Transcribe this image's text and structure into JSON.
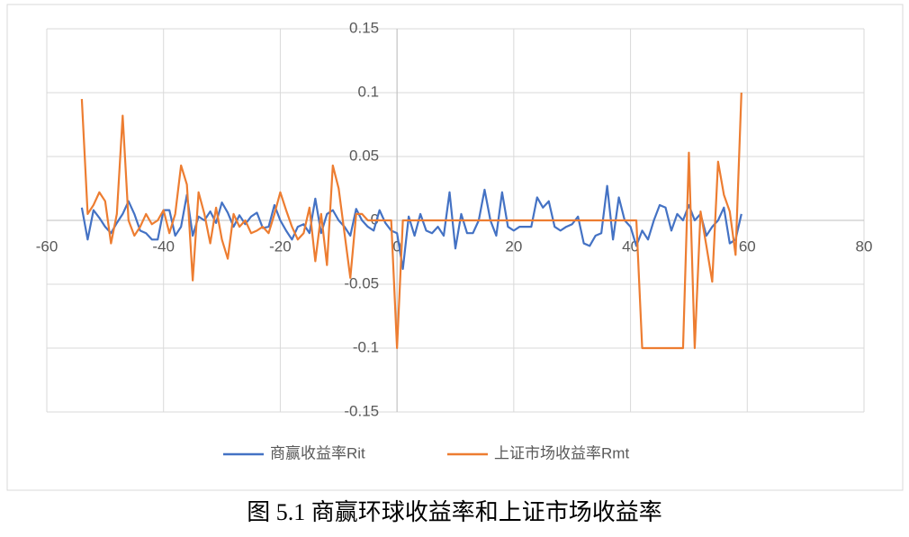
{
  "chart_data": {
    "type": "line",
    "title": "图 5.1 商赢环球收益率和上证市场收益率",
    "x": [
      -54,
      -53,
      -52,
      -51,
      -50,
      -49,
      -48,
      -47,
      -46,
      -45,
      -44,
      -43,
      -42,
      -41,
      -40,
      -39,
      -38,
      -37,
      -36,
      -35,
      -34,
      -33,
      -32,
      -31,
      -30,
      -29,
      -28,
      -27,
      -26,
      -25,
      -24,
      -23,
      -22,
      -21,
      -20,
      -19,
      -18,
      -17,
      -16,
      -15,
      -14,
      -13,
      -12,
      -11,
      -10,
      -9,
      -8,
      -7,
      -6,
      -5,
      -4,
      -3,
      -2,
      -1,
      0,
      1,
      2,
      3,
      4,
      5,
      6,
      7,
      8,
      9,
      10,
      11,
      12,
      13,
      14,
      15,
      16,
      17,
      18,
      19,
      20,
      21,
      22,
      23,
      24,
      25,
      26,
      27,
      28,
      29,
      30,
      31,
      32,
      33,
      34,
      35,
      36,
      37,
      38,
      39,
      40,
      41,
      42,
      43,
      44,
      45,
      46,
      47,
      48,
      49,
      50,
      51,
      52,
      53,
      54,
      55,
      56,
      57,
      58,
      59
    ],
    "series": [
      {
        "name": "商赢收益率Rit",
        "color": "#4472c4",
        "values": [
          0.01,
          -0.015,
          0.008,
          0.002,
          -0.005,
          -0.01,
          -0.002,
          0.005,
          0.015,
          0.005,
          -0.008,
          -0.01,
          -0.015,
          -0.015,
          0.008,
          0.008,
          -0.012,
          -0.005,
          0.02,
          -0.012,
          0.003,
          0.0,
          0.007,
          -0.002,
          0.014,
          0.006,
          -0.005,
          0.004,
          -0.003,
          0.003,
          0.006,
          -0.006,
          -0.005,
          0.012,
          0.0,
          -0.008,
          -0.015,
          -0.005,
          -0.003,
          -0.01,
          0.017,
          -0.01,
          0.005,
          0.008,
          0.0,
          -0.005,
          -0.012,
          0.009,
          0.0,
          -0.005,
          -0.008,
          0.008,
          -0.002,
          -0.008,
          -0.01,
          -0.038,
          0.003,
          -0.012,
          0.005,
          -0.008,
          -0.01,
          -0.005,
          -0.012,
          0.022,
          -0.022,
          0.005,
          -0.01,
          -0.01,
          0.0,
          0.024,
          0.0,
          -0.012,
          0.022,
          -0.005,
          -0.008,
          -0.005,
          -0.005,
          -0.005,
          0.018,
          0.01,
          0.015,
          -0.005,
          -0.008,
          -0.005,
          -0.003,
          0.003,
          -0.018,
          -0.02,
          -0.012,
          -0.01,
          0.027,
          -0.015,
          0.018,
          0.0,
          -0.005,
          -0.02,
          -0.008,
          -0.015,
          0.0,
          0.012,
          0.01,
          -0.008,
          0.005,
          0.0,
          0.012,
          0.0,
          0.005,
          -0.012,
          -0.005,
          0.0,
          0.01,
          -0.018,
          -0.015,
          0.005
        ]
      },
      {
        "name": "上证市场收益率Rmt",
        "color": "#ed7d31",
        "values": [
          0.095,
          0.005,
          0.012,
          0.022,
          0.015,
          -0.018,
          0.005,
          0.082,
          0.0,
          -0.012,
          -0.005,
          0.005,
          -0.003,
          0.0,
          0.008,
          -0.01,
          0.005,
          0.043,
          0.028,
          -0.047,
          0.022,
          0.005,
          -0.018,
          0.01,
          -0.015,
          -0.03,
          0.005,
          -0.005,
          0.0,
          -0.01,
          -0.008,
          -0.005,
          -0.01,
          0.005,
          0.022,
          0.008,
          -0.005,
          -0.015,
          -0.01,
          0.01,
          -0.032,
          0.005,
          -0.035,
          0.043,
          0.025,
          -0.01,
          -0.045,
          0.005,
          0.005,
          0.0,
          0.0,
          0.0,
          0.0,
          0.0,
          -0.1,
          0,
          0,
          0,
          0,
          0,
          0,
          0,
          0,
          0,
          0,
          0,
          0,
          0,
          0,
          0,
          0,
          0,
          0,
          0,
          0,
          0,
          0,
          0,
          0,
          0,
          0,
          0,
          0,
          0,
          0,
          0,
          0,
          0,
          0,
          0,
          0,
          0,
          0,
          0,
          0,
          0,
          -0.1,
          -0.1,
          -0.1,
          -0.1,
          -0.1,
          -0.1,
          -0.1,
          -0.1,
          0.053,
          -0.1,
          0.007,
          -0.02,
          -0.048,
          0.046,
          0.02,
          0.007,
          -0.027,
          0.1
        ]
      }
    ],
    "xlim": [
      -60,
      80
    ],
    "xticks": [
      -60,
      -40,
      -20,
      0,
      20,
      40,
      60,
      80
    ],
    "ylim": [
      -0.15,
      0.15
    ],
    "yticks": [
      -0.15,
      -0.1,
      -0.05,
      0,
      0.05,
      0.1,
      0.15
    ],
    "grid": true,
    "legend": "bottom"
  }
}
